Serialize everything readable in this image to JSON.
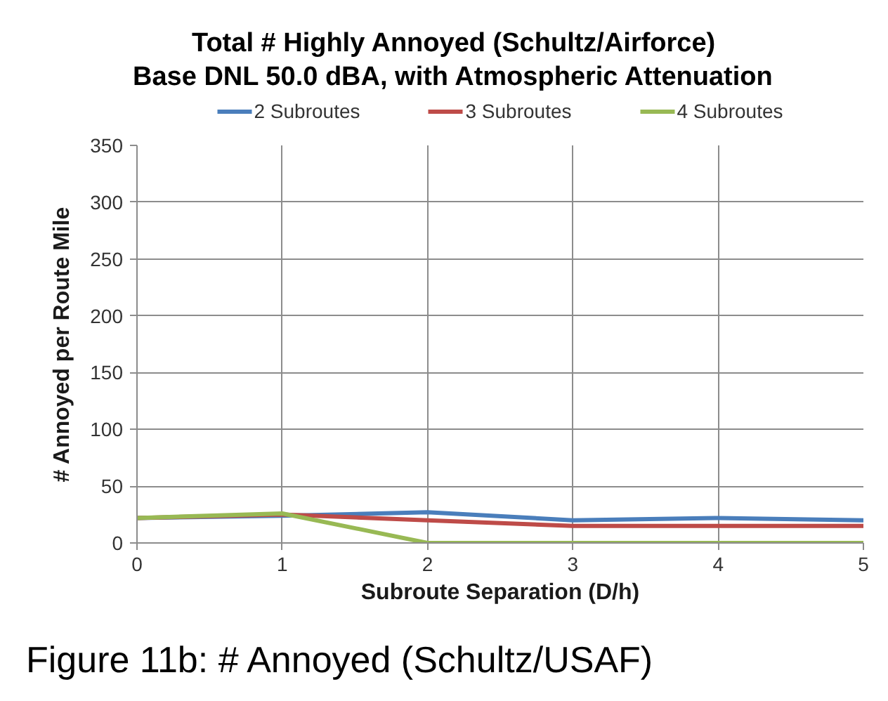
{
  "chart_data": {
    "type": "line",
    "title": "Total # Highly Annoyed (Schultz/Airforce)",
    "subtitle": "Base DNL 50.0 dBA, with Atmospheric Attenuation",
    "xlabel": "Subroute Separation (D/h)",
    "ylabel": "# Annoyed per Route Mile",
    "annotations": [
      "Figure 11b: # Annoyed (Schultz/USAF)"
    ],
    "x": [
      0,
      1,
      2,
      3,
      4,
      5
    ],
    "series": [
      {
        "name": "2 Subroutes",
        "color": "#4a7ebb",
        "values": [
          22,
          24,
          27,
          20,
          22,
          20
        ]
      },
      {
        "name": "3 Subroutes",
        "color": "#be4b48",
        "values": [
          22,
          25,
          20,
          15,
          15,
          15
        ]
      },
      {
        "name": "4 Subroutes",
        "color": "#98b954",
        "values": [
          22,
          26,
          0,
          0,
          0,
          0
        ]
      }
    ],
    "xlim": [
      0,
      5
    ],
    "ylim": [
      0,
      350
    ],
    "xticks": [
      0,
      1,
      2,
      3,
      4,
      5
    ],
    "yticks": [
      0,
      50,
      100,
      150,
      200,
      250,
      300,
      350
    ],
    "grid": true,
    "legend": "top",
    "line_style": "solid"
  }
}
